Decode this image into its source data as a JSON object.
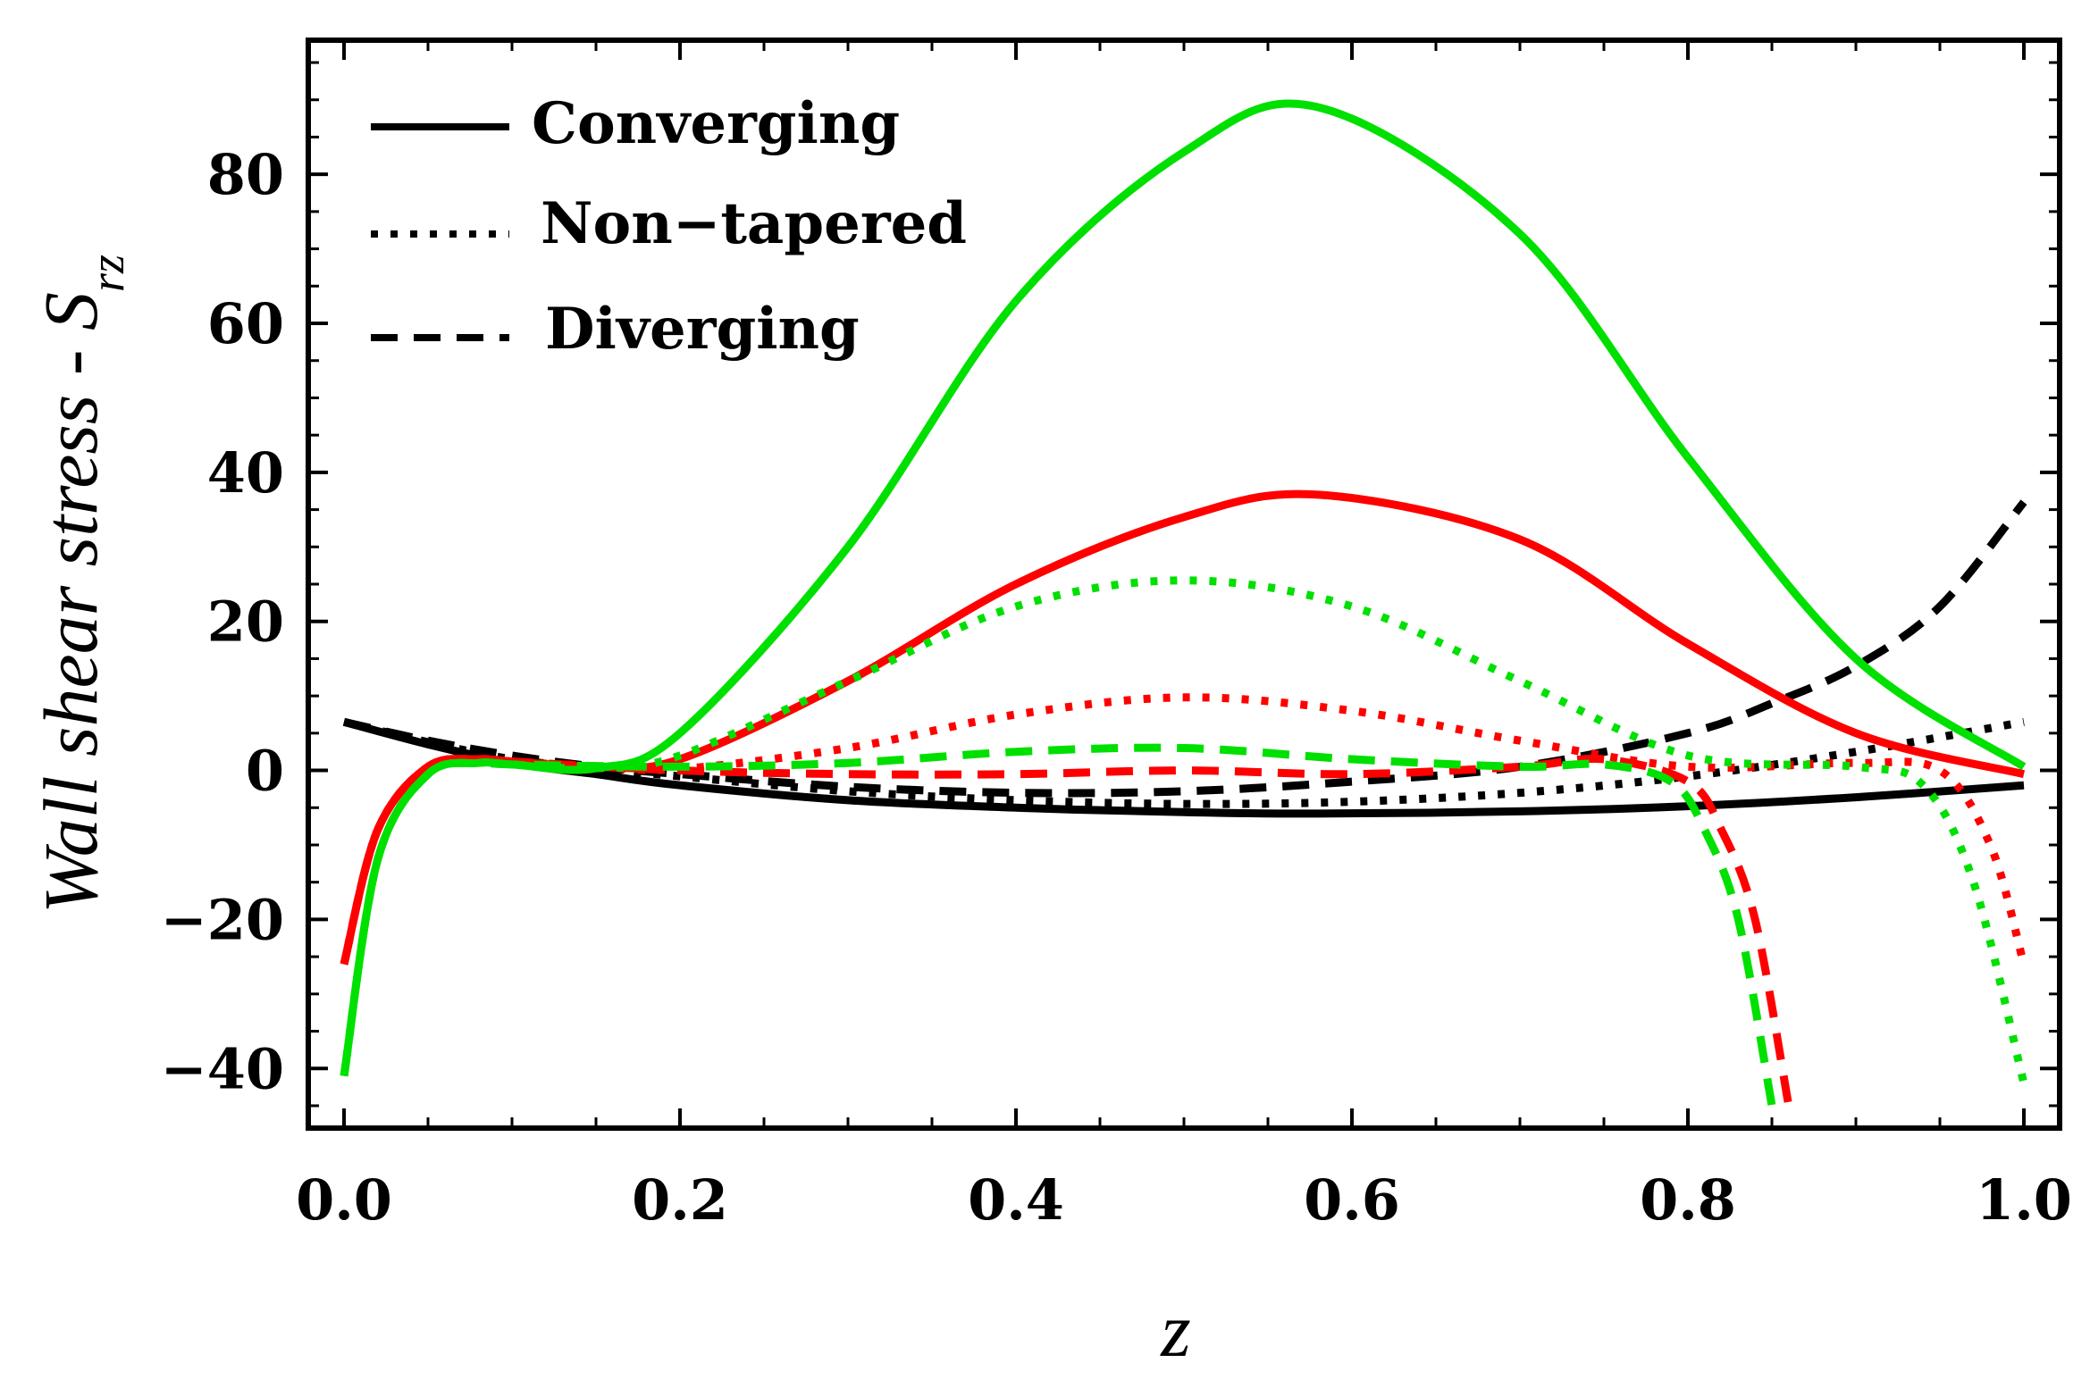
{
  "chart_data": {
    "type": "line",
    "title": "",
    "xlabel": "z",
    "ylabel_main": "Wall shear stress - ",
    "ylabel_symbol": "S",
    "ylabel_subscript": "rz",
    "xlim": [
      0.0,
      1.0
    ],
    "ylim": [
      -48,
      98
    ],
    "x_ticks": [
      0.0,
      0.2,
      0.4,
      0.6,
      0.8,
      1.0
    ],
    "x_tick_labels": [
      "0.0",
      "0.2",
      "0.4",
      "0.6",
      "0.8",
      "1.0"
    ],
    "y_ticks": [
      -40,
      -20,
      0,
      20,
      40,
      60,
      80
    ],
    "y_tick_labels": [
      "−40",
      "−20",
      "0",
      "20",
      "40",
      "60",
      "80"
    ],
    "grid": false,
    "legend_position": "top-left",
    "legend": [
      {
        "label": "Converging",
        "style": "solid"
      },
      {
        "label": "Non−tapered",
        "style": "dotted"
      },
      {
        "label": "Diverging",
        "style": "dashed"
      }
    ],
    "series": [
      {
        "name": "black-converging",
        "color": "#000000",
        "style": "solid",
        "x": [
          0.0,
          0.05,
          0.1,
          0.15,
          0.2,
          0.3,
          0.4,
          0.5,
          0.58,
          0.7,
          0.8,
          0.9,
          1.0
        ],
        "y": [
          6.5,
          3.5,
          1.0,
          -0.5,
          -2.0,
          -4.0,
          -5.0,
          -5.6,
          -5.8,
          -5.5,
          -4.8,
          -3.6,
          -2.0
        ]
      },
      {
        "name": "black-nontapered",
        "color": "#000000",
        "style": "dotted",
        "x": [
          0.0,
          0.05,
          0.1,
          0.15,
          0.2,
          0.3,
          0.4,
          0.5,
          0.6,
          0.7,
          0.8,
          0.9,
          1.0
        ],
        "y": [
          6.5,
          3.8,
          1.5,
          0.3,
          -0.8,
          -2.8,
          -4.0,
          -4.5,
          -4.2,
          -3.0,
          -0.8,
          2.5,
          6.5
        ]
      },
      {
        "name": "black-diverging",
        "color": "#000000",
        "style": "dashed",
        "x": [
          0.0,
          0.05,
          0.1,
          0.15,
          0.2,
          0.3,
          0.4,
          0.5,
          0.6,
          0.7,
          0.8,
          0.85,
          0.9,
          0.95,
          1.0
        ],
        "y": [
          6.5,
          4.0,
          2.0,
          0.5,
          -0.5,
          -2.2,
          -3.0,
          -2.8,
          -1.5,
          0.5,
          5.0,
          9.0,
          14.0,
          22.0,
          36.0
        ]
      },
      {
        "name": "red-converging",
        "color": "#ff0000",
        "style": "solid",
        "x": [
          0.0,
          0.02,
          0.05,
          0.08,
          0.1,
          0.15,
          0.2,
          0.3,
          0.4,
          0.5,
          0.58,
          0.7,
          0.8,
          0.9,
          1.0
        ],
        "y": [
          -26.0,
          -8.0,
          0.5,
          1.5,
          1.2,
          0.5,
          1.5,
          12.0,
          25.0,
          34.0,
          37.0,
          31.0,
          17.0,
          5.0,
          -0.5
        ]
      },
      {
        "name": "red-nontapered",
        "color": "#ff0000",
        "style": "dotted",
        "x": [
          0.0,
          0.02,
          0.05,
          0.08,
          0.1,
          0.15,
          0.2,
          0.3,
          0.4,
          0.5,
          0.6,
          0.7,
          0.8,
          0.9,
          0.95,
          0.98,
          1.0
        ],
        "y": [
          -26.0,
          -8.0,
          0.5,
          1.5,
          1.2,
          0.5,
          0.2,
          3.0,
          7.5,
          9.8,
          8.0,
          4.0,
          0.5,
          1.0,
          0.0,
          -10.0,
          -26.0
        ]
      },
      {
        "name": "red-diverging",
        "color": "#ff0000",
        "style": "dashed",
        "x": [
          0.0,
          0.02,
          0.05,
          0.08,
          0.1,
          0.2,
          0.3,
          0.4,
          0.5,
          0.6,
          0.7,
          0.75,
          0.8,
          0.82,
          0.84,
          0.86
        ],
        "y": [
          -26.0,
          -8.0,
          0.5,
          1.5,
          1.2,
          0.0,
          -0.5,
          -0.5,
          0.0,
          -0.5,
          0.5,
          1.5,
          -1.5,
          -8.0,
          -20.0,
          -45.0
        ]
      },
      {
        "name": "green-converging",
        "color": "#00e000",
        "style": "solid",
        "x": [
          0.0,
          0.02,
          0.05,
          0.08,
          0.1,
          0.15,
          0.2,
          0.3,
          0.4,
          0.5,
          0.58,
          0.7,
          0.8,
          0.9,
          1.0
        ],
        "y": [
          -41.0,
          -12.0,
          -0.5,
          1.0,
          0.8,
          0.3,
          5.0,
          30.0,
          63.0,
          83.0,
          89.0,
          72.0,
          42.0,
          15.0,
          0.5
        ]
      },
      {
        "name": "green-nontapered",
        "color": "#00e000",
        "style": "dotted",
        "x": [
          0.0,
          0.02,
          0.05,
          0.08,
          0.1,
          0.15,
          0.2,
          0.3,
          0.4,
          0.5,
          0.6,
          0.7,
          0.8,
          0.9,
          0.94,
          0.97,
          1.0
        ],
        "y": [
          -41.0,
          -12.0,
          -0.5,
          1.0,
          0.8,
          0.3,
          2.0,
          12.0,
          22.0,
          25.5,
          22.0,
          12.0,
          2.0,
          0.5,
          -2.0,
          -15.0,
          -42.0
        ]
      },
      {
        "name": "green-diverging",
        "color": "#00e000",
        "style": "dashed",
        "x": [
          0.0,
          0.02,
          0.05,
          0.08,
          0.1,
          0.2,
          0.3,
          0.4,
          0.5,
          0.6,
          0.7,
          0.75,
          0.79,
          0.81,
          0.83,
          0.85
        ],
        "y": [
          -41.0,
          -12.0,
          -0.5,
          1.0,
          0.8,
          0.5,
          1.0,
          2.5,
          3.0,
          1.5,
          0.5,
          0.8,
          -1.5,
          -8.0,
          -20.0,
          -45.0
        ]
      }
    ]
  }
}
